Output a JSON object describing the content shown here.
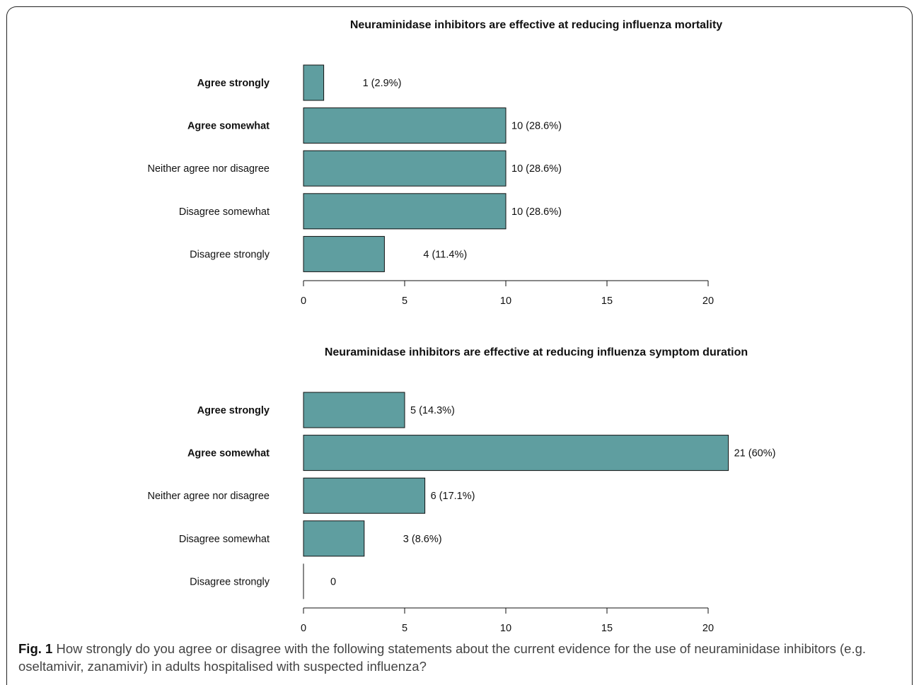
{
  "chart_data": [
    {
      "type": "bar",
      "orientation": "horizontal",
      "title": "Neuraminidase inhibitors are effective at reducing influenza mortality",
      "categories": [
        "Agree strongly",
        "Agree somewhat",
        "Neither agree nor disagree",
        "Disagree somewhat",
        "Disagree strongly"
      ],
      "values": [
        1,
        10,
        10,
        10,
        4
      ],
      "value_labels": [
        "1  (2.9%)",
        "10  (28.6%)",
        "10  (28.6%)",
        "10  (28.6%)",
        "4  (11.4%)"
      ],
      "bold_categories": [
        true,
        true,
        false,
        false,
        false
      ],
      "xlim": [
        0,
        20
      ],
      "xticks": [
        0,
        5,
        10,
        15,
        20
      ],
      "bar_color": "#5f9ea0",
      "grid": false
    },
    {
      "type": "bar",
      "orientation": "horizontal",
      "title": "Neuraminidase inhibitors are effective at reducing influenza symptom duration",
      "categories": [
        "Agree strongly",
        "Agree somewhat",
        "Neither agree nor disagree",
        "Disagree somewhat",
        "Disagree strongly"
      ],
      "values": [
        5,
        21,
        6,
        3,
        0
      ],
      "value_labels": [
        "5  (14.3%)",
        "21  (60%)",
        "6  (17.1%)",
        "3  (8.6%)",
        "0"
      ],
      "bold_categories": [
        true,
        true,
        false,
        false,
        false
      ],
      "xlim": [
        0,
        20
      ],
      "xticks": [
        0,
        5,
        10,
        15,
        20
      ],
      "bar_color": "#5f9ea0",
      "grid": false
    }
  ],
  "caption": {
    "label": "Fig. 1",
    "text": " How strongly do you agree or disagree with the following statements about the current evidence for the use of neuraminidase inhibitors (e.g. oseltamivir, zanamivir) in adults hospitalised with suspected influenza?"
  }
}
